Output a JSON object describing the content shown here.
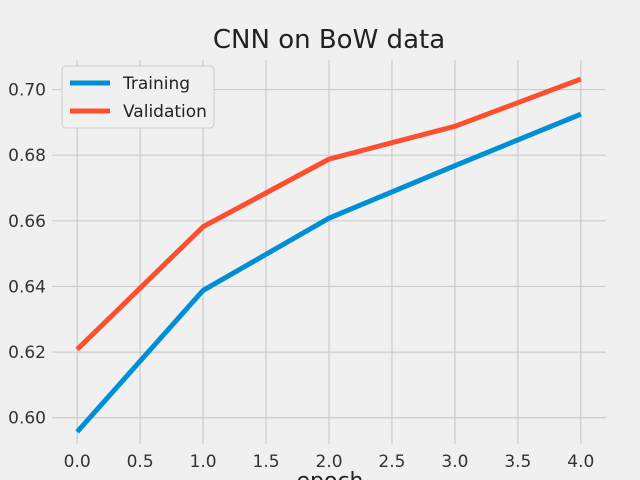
{
  "chart_data": {
    "type": "line",
    "title": "CNN on BoW data",
    "xlabel": "epoch",
    "ylabel": "",
    "x": [
      0,
      1,
      2,
      3,
      4
    ],
    "xlim": [
      -0.2,
      4.2
    ],
    "ylim": [
      0.592,
      0.709
    ],
    "xticks": [
      0.0,
      0.5,
      1.0,
      1.5,
      2.0,
      2.5,
      3.0,
      3.5,
      4.0
    ],
    "xtick_labels": [
      "0.0",
      "0.5",
      "1.0",
      "1.5",
      "2.0",
      "2.5",
      "3.0",
      "3.5",
      "4.0"
    ],
    "yticks": [
      0.6,
      0.62,
      0.64,
      0.66,
      0.68,
      0.7
    ],
    "ytick_labels": [
      "0.60",
      "0.62",
      "0.64",
      "0.66",
      "0.68",
      "0.70"
    ],
    "grid": true,
    "legend": "top-left",
    "series": [
      {
        "name": "Training",
        "color": "#008fd5",
        "values": [
          0.5957,
          0.6388,
          0.6608,
          0.6768,
          0.6925
        ]
      },
      {
        "name": "Validation",
        "color": "#fc4f30",
        "values": [
          0.6208,
          0.6582,
          0.6788,
          0.6888,
          0.7032
        ]
      }
    ]
  }
}
